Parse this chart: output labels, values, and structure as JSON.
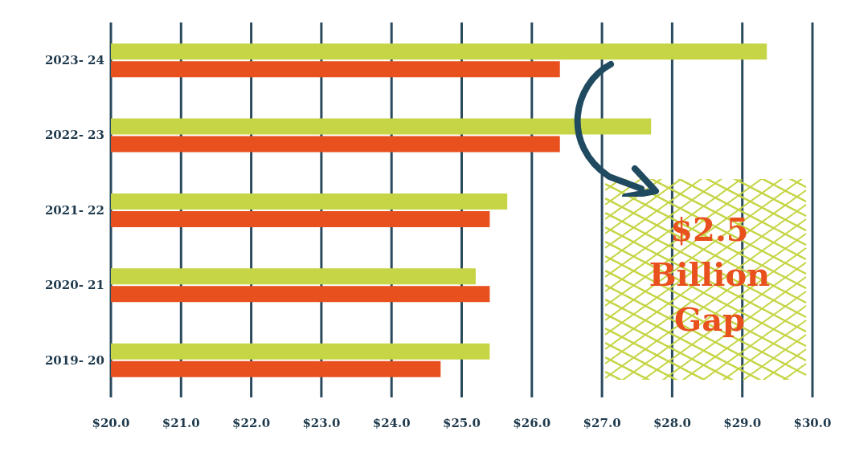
{
  "chart_data": {
    "type": "bar",
    "orientation": "horizontal",
    "categories": [
      "2023- 24",
      "2022- 23",
      "2021- 22",
      "2020- 21",
      "2019- 20"
    ],
    "series": [
      {
        "color": "#c5d545",
        "values": [
          29.35,
          27.7,
          25.65,
          25.2,
          25.4
        ]
      },
      {
        "color": "#e8501e",
        "values": [
          26.4,
          26.4,
          25.4,
          25.4,
          24.7
        ]
      }
    ],
    "xlim": [
      20,
      30
    ],
    "xticks": [
      {
        "value": 20,
        "label": "$20.0"
      },
      {
        "value": 21,
        "label": "$21.0"
      },
      {
        "value": 22,
        "label": "$22.0"
      },
      {
        "value": 23,
        "label": "$23.0"
      },
      {
        "value": 24,
        "label": "$24.0"
      },
      {
        "value": 25,
        "label": "$25.0"
      },
      {
        "value": 26,
        "label": "$26.0"
      },
      {
        "value": 27,
        "label": "$27.0"
      },
      {
        "value": 28,
        "label": "$28.0"
      },
      {
        "value": 29,
        "label": "$29.0"
      },
      {
        "value": 30,
        "label": "$30.0"
      }
    ],
    "grid": "x",
    "annotations": [
      "$2.5 Billion Gap"
    ]
  }
}
